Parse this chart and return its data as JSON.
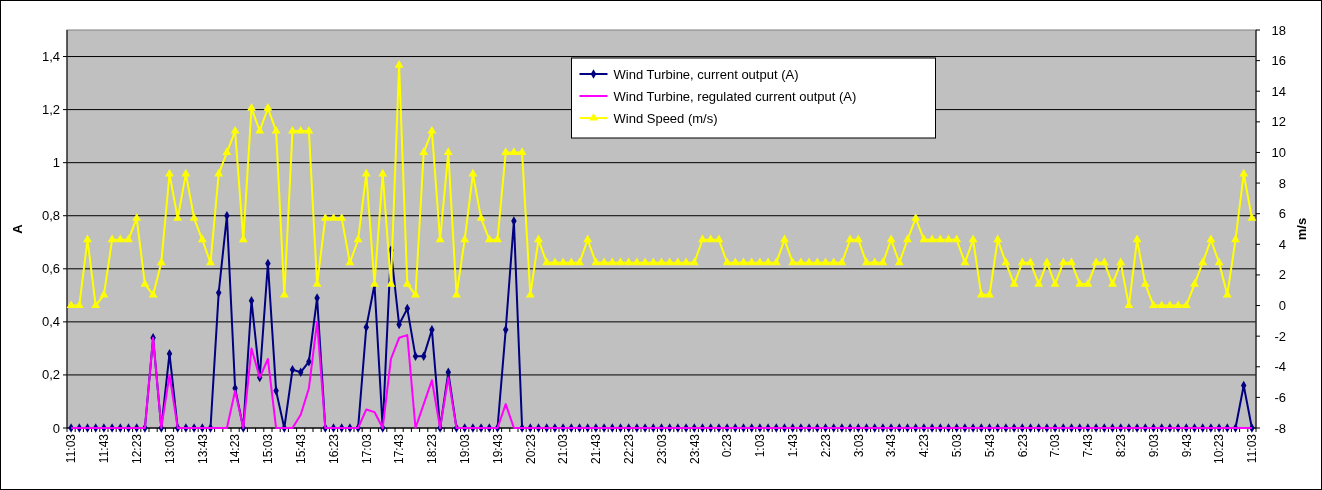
{
  "chart_data": {
    "type": "line",
    "categories": [
      "11:03",
      null,
      null,
      null,
      "11:43",
      null,
      null,
      null,
      "12:23",
      null,
      null,
      null,
      "13:03",
      null,
      null,
      null,
      "13:43",
      null,
      null,
      null,
      "14:23",
      null,
      null,
      null,
      "15:03",
      null,
      null,
      null,
      "15:43",
      null,
      null,
      null,
      "16:23",
      null,
      null,
      null,
      "17:03",
      null,
      null,
      null,
      "17:43",
      null,
      null,
      null,
      "18:23",
      null,
      null,
      null,
      "19:03",
      null,
      null,
      null,
      "19:43",
      null,
      null,
      null,
      "20:23",
      null,
      null,
      null,
      "21:03",
      null,
      null,
      null,
      "21:43",
      null,
      null,
      null,
      "22:23",
      null,
      null,
      null,
      "23:03",
      null,
      null,
      null,
      "23:43",
      null,
      null,
      null,
      "0:23",
      null,
      null,
      null,
      "1:03",
      null,
      null,
      null,
      "1:43",
      null,
      null,
      null,
      "2:23",
      null,
      null,
      null,
      "3:03",
      null,
      null,
      null,
      "3:43",
      null,
      null,
      null,
      "4:23",
      null,
      null,
      null,
      "5:03",
      null,
      null,
      null,
      "5:43",
      null,
      null,
      null,
      "6:23",
      null,
      null,
      null,
      "7:03",
      null,
      null,
      null,
      "7:43",
      null,
      null,
      null,
      "8:23",
      null,
      null,
      null,
      "9:03",
      null,
      null,
      null,
      "9:43",
      null,
      null,
      null,
      "10:23",
      null,
      null,
      null,
      "11:03"
    ],
    "series": [
      {
        "name": "Wind Turbine, current output (A)",
        "color": "#000080",
        "marker": "diamond",
        "values": [
          0,
          0,
          0,
          0,
          0,
          0,
          0,
          0,
          0,
          0,
          0.34,
          0,
          0.28,
          0,
          0,
          0,
          0,
          0,
          0.51,
          0.8,
          0.15,
          0,
          0.48,
          0.19,
          0.62,
          0.14,
          0,
          0.22,
          0.21,
          0.25,
          0.49,
          0,
          0,
          0,
          0,
          0,
          0.38,
          0.54,
          0,
          0.67,
          0.39,
          0.45,
          0.27,
          0.27,
          0.37,
          0,
          0.21,
          0,
          0,
          0,
          0,
          0,
          0,
          0.37,
          0.78,
          0,
          0,
          0,
          0,
          0,
          0,
          0,
          0,
          0,
          0,
          0,
          0,
          0,
          0,
          0,
          0,
          0,
          0,
          0,
          0,
          0,
          0,
          0,
          0,
          0,
          0,
          0,
          0,
          0,
          0,
          0,
          0,
          0,
          0,
          0,
          0,
          0,
          0,
          0,
          0,
          0,
          0,
          0,
          0,
          0,
          0,
          0,
          0,
          0,
          0,
          0,
          0,
          0,
          0,
          0,
          0,
          0,
          0,
          0,
          0,
          0,
          0,
          0,
          0,
          0,
          0,
          0,
          0,
          0,
          0,
          0,
          0,
          0,
          0,
          0,
          0,
          0,
          0,
          0,
          0,
          0,
          0,
          0,
          0,
          0,
          0,
          0,
          0,
          0.16,
          0
        ]
      },
      {
        "name": "Wind Turbine, regulated current output (A)",
        "color": "#ff00ff",
        "marker": "none",
        "values": [
          0,
          0,
          0,
          0,
          0,
          0,
          0,
          0,
          0,
          0,
          0.34,
          0,
          0.2,
          0,
          0,
          0,
          0,
          0,
          0,
          0,
          0.14,
          0,
          0.3,
          0.19,
          0.26,
          0,
          0,
          0,
          0.05,
          0.15,
          0.4,
          0,
          0,
          0,
          0,
          0,
          0.07,
          0.06,
          0,
          0.26,
          0.34,
          0.35,
          0,
          0.09,
          0.18,
          0,
          0.19,
          0,
          0,
          0,
          0,
          0,
          0,
          0.09,
          0,
          0,
          0,
          0,
          0,
          0,
          0,
          0,
          0,
          0,
          0,
          0,
          0,
          0,
          0,
          0,
          0,
          0,
          0,
          0,
          0,
          0,
          0,
          0,
          0,
          0,
          0,
          0,
          0,
          0,
          0,
          0,
          0,
          0,
          0,
          0,
          0,
          0,
          0,
          0,
          0,
          0,
          0,
          0,
          0,
          0,
          0,
          0,
          0,
          0,
          0,
          0,
          0,
          0,
          0,
          0,
          0,
          0,
          0,
          0,
          0,
          0,
          0,
          0,
          0,
          0,
          0,
          0,
          0,
          0,
          0,
          0,
          0,
          0,
          0,
          0,
          0,
          0,
          0,
          0,
          0,
          0,
          0,
          0,
          0,
          0,
          0,
          0,
          0,
          0,
          0
        ]
      },
      {
        "name": "Wind Speed (m/s)",
        "color": "#ffff00",
        "marker": "triangle",
        "axis": "y2",
        "values": [
          0,
          0,
          4.3,
          0,
          0.7,
          4.3,
          4.3,
          4.3,
          5.7,
          1.4,
          0.7,
          2.8,
          8.6,
          5.7,
          8.6,
          5.7,
          4.3,
          2.8,
          8.6,
          10,
          11.4,
          4.3,
          12.9,
          11.4,
          12.9,
          11.4,
          0.7,
          11.4,
          11.4,
          11.4,
          1.4,
          5.7,
          5.7,
          5.7,
          2.8,
          4.3,
          8.6,
          1.4,
          8.6,
          1.4,
          15.7,
          1.4,
          0.7,
          10,
          11.4,
          4.3,
          10,
          0.7,
          4.3,
          8.6,
          5.7,
          4.3,
          4.3,
          10,
          10,
          10,
          0.7,
          4.3,
          2.8,
          2.8,
          2.8,
          2.8,
          2.8,
          4.3,
          2.8,
          2.8,
          2.8,
          2.8,
          2.8,
          2.8,
          2.8,
          2.8,
          2.8,
          2.8,
          2.8,
          2.8,
          2.8,
          4.3,
          4.3,
          4.3,
          2.8,
          2.8,
          2.8,
          2.8,
          2.8,
          2.8,
          2.8,
          4.3,
          2.8,
          2.8,
          2.8,
          2.8,
          2.8,
          2.8,
          2.8,
          4.3,
          4.3,
          2.8,
          2.8,
          2.8,
          4.3,
          2.8,
          4.3,
          5.7,
          4.3,
          4.3,
          4.3,
          4.3,
          4.3,
          2.8,
          4.3,
          0.7,
          0.7,
          4.3,
          2.8,
          1.4,
          2.8,
          2.8,
          1.4,
          2.8,
          1.4,
          2.8,
          2.8,
          1.4,
          1.4,
          2.8,
          2.8,
          1.4,
          2.8,
          0,
          4.3,
          1.4,
          0,
          0,
          0,
          0,
          0,
          1.4,
          2.8,
          4.3,
          2.8,
          0.7,
          4.3,
          8.6,
          5.7
        ]
      }
    ],
    "ylabel": "A",
    "y2label": "m/s",
    "ylim": [
      0,
      1.5
    ],
    "yticks": [
      0,
      {
        "value": 0.2,
        "label": "0,2"
      },
      {
        "value": 0.4,
        "label": "0,4"
      },
      {
        "value": 0.6,
        "label": "0,6"
      },
      {
        "value": 0.8,
        "label": "0,8"
      },
      1,
      {
        "value": 1.2,
        "label": "1,2"
      },
      {
        "value": 1.4,
        "label": "1,4"
      }
    ],
    "y2lim": [
      -8,
      18
    ],
    "y2ticks": [
      -8,
      -6,
      -4,
      -2,
      0,
      2,
      4,
      6,
      8,
      10,
      12,
      14,
      16,
      18
    ],
    "grid": "y",
    "legend": "top"
  }
}
